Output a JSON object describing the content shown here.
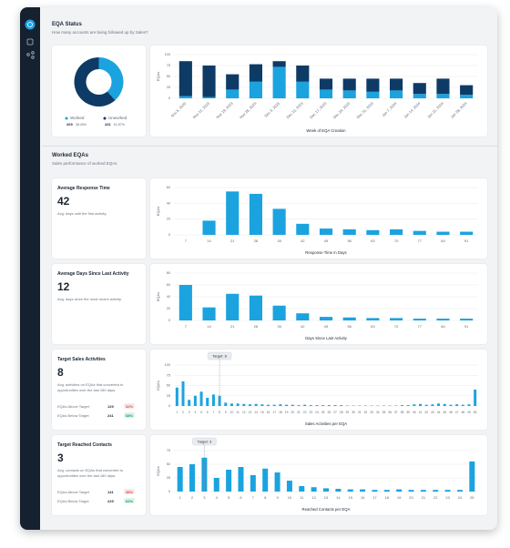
{
  "sections": [
    {
      "title": "EQA Status",
      "subtitle": "How many accounts are being followed up by Sales?"
    },
    {
      "title": "Worked EQAs",
      "subtitle": "Sales performance of worked EQAs"
    }
  ],
  "chart_data": [
    {
      "type": "pie",
      "donut": true,
      "categories": [
        "Worked",
        "Unworked"
      ],
      "values": [
        269,
        431
      ],
      "share_labels": [
        "38.43%",
        "61.57%"
      ],
      "colors": [
        "#1ba3e0",
        "#0e3b66"
      ]
    },
    {
      "type": "bar",
      "stacked": true,
      "categories": [
        "Nov 5, 2023",
        "Nov 12, 2023",
        "Nov 19, 2023",
        "Nov 26, 2023",
        "Dec 3, 2023",
        "Dec 10, 2023",
        "Dec 17, 2023",
        "Dec 24, 2023",
        "Dec 31, 2023",
        "Jan 7, 2024",
        "Jan 14, 2024",
        "Jan 21, 2024",
        "Jan 28, 2024"
      ],
      "series": [
        {
          "color": "#1ba3e0",
          "values": [
            5,
            3,
            20,
            38,
            72,
            38,
            20,
            18,
            15,
            18,
            10,
            10,
            8
          ]
        },
        {
          "color": "#0e3b66",
          "values": [
            80,
            72,
            35,
            40,
            13,
            37,
            25,
            27,
            30,
            27,
            25,
            35,
            22
          ]
        }
      ],
      "ylabel": "EQAs",
      "xlabel": "Week of EQA Creation",
      "ylim": [
        0,
        100
      ],
      "yticks": [
        0,
        25,
        50,
        75,
        100
      ],
      "grid": true
    },
    {
      "type": "bar",
      "title": "Average Response Time",
      "kpi": 42,
      "description": "Avg. days until the first activity.",
      "categories": [
        7,
        14,
        21,
        28,
        35,
        42,
        49,
        56,
        63,
        70,
        77,
        84,
        91
      ],
      "values": [
        0,
        18,
        55,
        52,
        33,
        14,
        8,
        7,
        6,
        7,
        5,
        4,
        4
      ],
      "color": "#1ba3e0",
      "ylabel": "EQAs",
      "xlabel": "Response Time in Days",
      "ylim": [
        0,
        60
      ],
      "yticks": [
        0,
        20,
        40,
        60
      ],
      "grid": true
    },
    {
      "type": "bar",
      "title": "Average Days Since Last Activity",
      "kpi": 12,
      "description": "Avg. days since the most recent activity.",
      "categories": [
        7,
        14,
        21,
        28,
        35,
        42,
        49,
        56,
        63,
        70,
        77,
        84,
        91
      ],
      "values": [
        60,
        22,
        45,
        42,
        25,
        12,
        6,
        5,
        4,
        4,
        3,
        3,
        3
      ],
      "color": "#1ba3e0",
      "ylabel": "EQAs",
      "xlabel": "Days Since Last Activity",
      "ylim": [
        0,
        80
      ],
      "yticks": [
        0,
        20,
        40,
        60,
        80
      ],
      "grid": true
    },
    {
      "type": "bar",
      "title": "Target Sales Activities",
      "kpi": 8,
      "description": "Avg. activities on EQAs that converted to opportunities over the last 180 days.",
      "rows": [
        {
          "label": "EQAs Above Target",
          "count": 129,
          "share": "32%",
          "badge_color": "#e04848"
        },
        {
          "label": "EQAs Below Target",
          "count": 241,
          "share": "68%",
          "badge_color": "#1a9d5a"
        }
      ],
      "target": {
        "value": 8,
        "label": "Target: 8"
      },
      "categories": [
        1,
        2,
        3,
        4,
        5,
        6,
        7,
        8,
        9,
        10,
        11,
        12,
        13,
        14,
        15,
        16,
        17,
        18,
        19,
        20,
        21,
        22,
        23,
        24,
        25,
        26,
        27,
        28,
        29,
        30,
        31,
        32,
        33,
        34,
        35,
        36,
        37,
        38,
        39,
        40,
        41,
        42,
        43,
        44,
        45,
        46,
        47,
        48,
        49,
        50
      ],
      "values": [
        45,
        60,
        15,
        25,
        35,
        20,
        28,
        25,
        8,
        6,
        6,
        5,
        4,
        5,
        4,
        3,
        3,
        4,
        3,
        3,
        2,
        3,
        2,
        2,
        2,
        2,
        2,
        2,
        1,
        1,
        1,
        1,
        1,
        1,
        1,
        1,
        1,
        2,
        2,
        4,
        5,
        3,
        4,
        6,
        5,
        3,
        4,
        3,
        4,
        40
      ],
      "color": "#1ba3e0",
      "ylabel": "EQAs",
      "xlabel": "Sales Activities per EQA",
      "ylim": [
        0,
        100
      ],
      "yticks": [
        0,
        25,
        50,
        75,
        100
      ],
      "grid": true
    },
    {
      "type": "bar",
      "title": "Target Reached Contacts",
      "kpi": 3,
      "description": "Avg. contacts on EQAs that converted to opportunities over the last 180 days.",
      "rows": [
        {
          "label": "EQAs Above Target",
          "count": 141,
          "share": "38%",
          "badge_color": "#e04848"
        },
        {
          "label": "EQAs Below Target",
          "count": 229,
          "share": "62%",
          "badge_color": "#1a9d5a"
        }
      ],
      "target": {
        "value": 3,
        "label": "Target: 3"
      },
      "categories": [
        1,
        2,
        3,
        4,
        5,
        6,
        7,
        8,
        9,
        10,
        11,
        12,
        13,
        14,
        15,
        16,
        17,
        18,
        19,
        20,
        21,
        22,
        23,
        24,
        25
      ],
      "values": [
        45,
        50,
        62,
        25,
        40,
        45,
        30,
        42,
        35,
        20,
        10,
        8,
        6,
        5,
        4,
        4,
        3,
        3,
        4,
        3,
        3,
        3,
        3,
        3,
        55
      ],
      "color": "#1ba3e0",
      "ylabel": "EQAs",
      "xlabel": "Reached Contacts per EQA",
      "ylim": [
        0,
        75
      ],
      "yticks": [
        0,
        25,
        50,
        75
      ],
      "grid": true
    }
  ]
}
